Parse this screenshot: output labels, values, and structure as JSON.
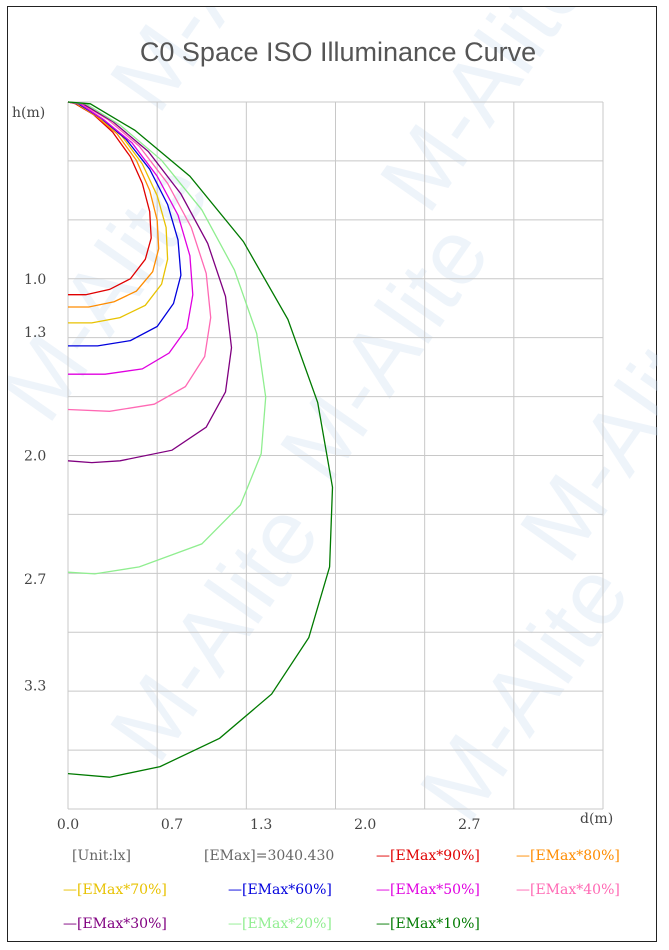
{
  "chart_data": {
    "type": "line",
    "title": "C0 Space ISO Illuminance Curve",
    "xlabel": "d(m)",
    "ylabel": "h(m)",
    "xlim": [
      0,
      3.6
    ],
    "ylim": [
      0,
      4.0
    ],
    "x_ticks": [
      "0.0",
      "0.7",
      "1.3",
      "2.0",
      "2.7"
    ],
    "y_ticks": [
      "1.0",
      "1.3",
      "2.0",
      "2.7",
      "3.3"
    ],
    "grid": true,
    "series": [
      {
        "name": "[EMax*90%]",
        "color": "#e00000",
        "x": [
          0,
          0.05,
          0.17,
          0.3,
          0.42,
          0.5,
          0.55,
          0.56,
          0.52,
          0.42,
          0.28,
          0.12,
          0.0
        ],
        "y": [
          0,
          0.01,
          0.07,
          0.17,
          0.31,
          0.46,
          0.62,
          0.77,
          0.89,
          1.0,
          1.06,
          1.09,
          1.09
        ]
      },
      {
        "name": "[EMax*80%]",
        "color": "#ff8c00",
        "x": [
          0,
          0.06,
          0.19,
          0.33,
          0.46,
          0.55,
          0.6,
          0.61,
          0.57,
          0.46,
          0.31,
          0.14,
          0.0
        ],
        "y": [
          0,
          0.01,
          0.08,
          0.18,
          0.33,
          0.5,
          0.67,
          0.83,
          0.96,
          1.07,
          1.13,
          1.16,
          1.16
        ]
      },
      {
        "name": "[EMax*70%]",
        "color": "#e8c200",
        "x": [
          0,
          0.06,
          0.2,
          0.36,
          0.5,
          0.6,
          0.66,
          0.67,
          0.63,
          0.52,
          0.35,
          0.16,
          0.0
        ],
        "y": [
          0,
          0.01,
          0.08,
          0.19,
          0.35,
          0.53,
          0.71,
          0.89,
          1.03,
          1.15,
          1.22,
          1.25,
          1.25
        ]
      },
      {
        "name": "[EMax*60%]",
        "color": "#0000dd",
        "x": [
          0,
          0.07,
          0.22,
          0.39,
          0.55,
          0.67,
          0.74,
          0.76,
          0.71,
          0.6,
          0.42,
          0.2,
          0.0
        ],
        "y": [
          0,
          0.01,
          0.09,
          0.21,
          0.38,
          0.58,
          0.78,
          0.98,
          1.14,
          1.27,
          1.35,
          1.38,
          1.38
        ]
      },
      {
        "name": "[EMax*50%]",
        "color": "#e000e0",
        "x": [
          0,
          0.08,
          0.24,
          0.43,
          0.6,
          0.74,
          0.82,
          0.84,
          0.8,
          0.68,
          0.5,
          0.25,
          0.0
        ],
        "y": [
          0,
          0.01,
          0.1,
          0.23,
          0.42,
          0.64,
          0.87,
          1.09,
          1.28,
          1.42,
          1.51,
          1.54,
          1.54
        ]
      },
      {
        "name": "[EMax*40%]",
        "color": "#ff69b4",
        "x": [
          0,
          0.09,
          0.27,
          0.48,
          0.67,
          0.83,
          0.93,
          0.96,
          0.92,
          0.79,
          0.58,
          0.28,
          0.0
        ],
        "y": [
          0,
          0.01,
          0.1,
          0.25,
          0.46,
          0.71,
          0.97,
          1.22,
          1.44,
          1.61,
          1.71,
          1.75,
          1.74
        ]
      },
      {
        "name": "[EMax*30%]",
        "color": "#800080",
        "x": [
          0,
          0.1,
          0.3,
          0.54,
          0.76,
          0.94,
          1.06,
          1.1,
          1.06,
          0.93,
          0.7,
          0.35,
          0.16,
          0.0
        ],
        "y": [
          0,
          0.01,
          0.11,
          0.28,
          0.52,
          0.8,
          1.1,
          1.39,
          1.64,
          1.84,
          1.97,
          2.03,
          2.04,
          2.03
        ]
      },
      {
        "name": "[EMax*20%]",
        "color": "#90ee90",
        "x": [
          0,
          0.12,
          0.35,
          0.63,
          0.9,
          1.12,
          1.27,
          1.33,
          1.3,
          1.16,
          0.9,
          0.48,
          0.18,
          0.0
        ],
        "y": [
          0,
          0.01,
          0.13,
          0.33,
          0.61,
          0.95,
          1.31,
          1.67,
          1.99,
          2.28,
          2.5,
          2.63,
          2.67,
          2.66
        ]
      },
      {
        "name": "[EMax*10%]",
        "color": "#007a00",
        "x": [
          0,
          0.15,
          0.45,
          0.82,
          1.18,
          1.48,
          1.68,
          1.78,
          1.76,
          1.62,
          1.37,
          1.02,
          0.62,
          0.28,
          0.0
        ],
        "y": [
          0,
          0.01,
          0.16,
          0.42,
          0.79,
          1.23,
          1.7,
          2.18,
          2.63,
          3.03,
          3.35,
          3.6,
          3.76,
          3.82,
          3.8
        ]
      }
    ]
  },
  "legend_info": {
    "unit": "[Unit:lx]",
    "emax": "[EMax]=3040.430",
    "dash": "—"
  },
  "watermark": "M-Alite"
}
